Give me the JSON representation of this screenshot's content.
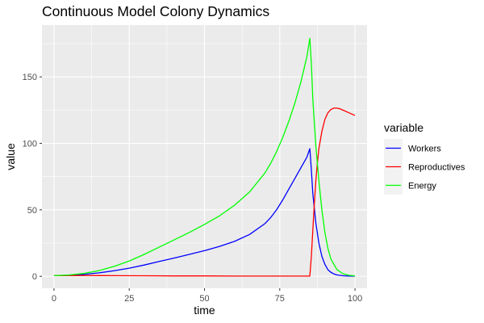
{
  "chart_data": {
    "type": "line",
    "title": "Continuous Model Colony Dynamics",
    "xlabel": "time",
    "ylabel": "value",
    "xlim": [
      -4,
      104
    ],
    "ylim": [
      -9,
      189
    ],
    "x_ticks": [
      0,
      25,
      50,
      75,
      100
    ],
    "y_ticks": [
      0,
      50,
      100,
      150
    ],
    "grid": true,
    "legend": {
      "title": "variable",
      "placement": "right"
    },
    "series": [
      {
        "name": "Workers",
        "color": "#0000ff",
        "x": [
          0,
          5,
          10,
          15,
          20,
          25,
          30,
          35,
          40,
          45,
          50,
          55,
          60,
          65,
          70,
          72,
          74,
          76,
          78,
          80,
          82,
          84,
          85,
          85.5,
          86,
          87,
          88,
          89,
          90,
          91,
          92,
          93,
          94,
          96,
          98,
          100
        ],
        "values": [
          0.5,
          0.8,
          1.5,
          2.6,
          4.2,
          6.1,
          8.5,
          11.2,
          13.8,
          16.5,
          19.3,
          22.5,
          26.3,
          31.5,
          39.5,
          44.2,
          50.2,
          57.5,
          65.5,
          73.5,
          81.5,
          89.5,
          96.0,
          80.0,
          62.0,
          40.0,
          25.0,
          15.0,
          9.0,
          5.0,
          3.0,
          1.8,
          1.0,
          0.4,
          0.2,
          0.1
        ]
      },
      {
        "name": "Reproductives",
        "color": "#ff0000",
        "x": [
          0,
          10,
          20,
          30,
          40,
          50,
          60,
          70,
          80,
          84,
          85,
          85.5,
          86,
          86.5,
          87,
          87.5,
          88,
          89,
          90,
          91,
          92,
          93,
          94,
          95,
          96,
          97,
          98,
          99,
          100
        ],
        "values": [
          0.5,
          0.6,
          0.5,
          0.4,
          0.3,
          0.3,
          0.2,
          0.2,
          0.2,
          0.2,
          0.2,
          15.0,
          35.0,
          55.0,
          72.0,
          85.0,
          96.0,
          109.0,
          118.0,
          123.0,
          125.5,
          126.5,
          126.5,
          126.0,
          125.0,
          124.0,
          123.0,
          122.0,
          121.0
        ]
      },
      {
        "name": "Energy",
        "color": "#00ff00",
        "x": [
          0,
          5,
          10,
          15,
          20,
          25,
          30,
          35,
          40,
          45,
          50,
          55,
          60,
          65,
          70,
          72,
          74,
          76,
          78,
          80,
          82,
          84,
          85,
          85.5,
          86,
          86.5,
          87,
          88,
          89,
          90,
          91,
          92,
          94,
          96,
          98,
          100
        ],
        "values": [
          0.5,
          1.0,
          2.2,
          4.3,
          7.5,
          11.5,
          16.5,
          22.0,
          27.5,
          33.0,
          39.0,
          45.5,
          53.5,
          63.5,
          77.5,
          85.0,
          94.0,
          104.5,
          116.5,
          130.0,
          146.0,
          165.0,
          179.0,
          160.0,
          133.0,
          115.0,
          98.0,
          72.0,
          50.0,
          33.0,
          21.0,
          13.0,
          5.0,
          2.0,
          0.8,
          0.3
        ]
      }
    ]
  }
}
